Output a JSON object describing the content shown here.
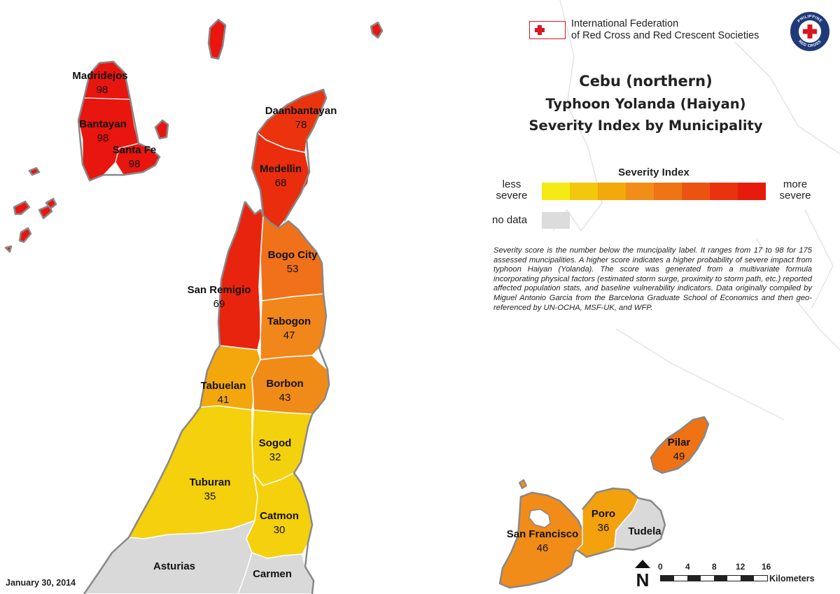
{
  "header": {
    "org_name_line1": "International Federation",
    "org_name_line2": "of Red Cross and Red Crescent Societies",
    "badge_text": "PHILIPPINE RED CROSS"
  },
  "title": {
    "line1": "Cebu (northern)",
    "line2": "Typhoon Yolanda (Haiyan)",
    "line3": "Severity Index by Municipality"
  },
  "legend": {
    "title": "Severity Index",
    "less_label": "less severe",
    "more_label": "more severe",
    "no_data_label": "no data",
    "scale_colors": [
      "#f5ea14",
      "#f3c70b",
      "#f3a90a",
      "#f18e17",
      "#ef7414",
      "#ed5310",
      "#ea330e",
      "#e71b0b"
    ],
    "no_data_color": "#dcdcdc"
  },
  "description": "Severity score is the number below the muncipality label. It ranges from 17 to 98 for 175 assessed muncipalities. A higher score indicates a higher probability of severe impact from typhoon Haiyan (Yolanda). The score was generated from a multivariate formula incorporating physical factors (estimated storm surge, proximity to storm path, etc.) reported affected population stats, and baseline vulnerability indicators. Data originally compiled by Miguel Antonio Garcia from the Barcelona Graduate School of Economics and then geo-referenced by UN-OCHA, MSF-UK, and WFP.",
  "date": "January 30, 2014",
  "scale": {
    "ticks": [
      "0",
      "4",
      "8",
      "12",
      "16"
    ],
    "unit": "Kilometers",
    "north_label": "N"
  },
  "municipalities": [
    {
      "name": "Madridejos",
      "score": "98"
    },
    {
      "name": "Bantayan",
      "score": "98"
    },
    {
      "name": "Santa Fe",
      "score": "98"
    },
    {
      "name": "Daanbantayan",
      "score": "78"
    },
    {
      "name": "Medellin",
      "score": "68"
    },
    {
      "name": "Bogo City",
      "score": "53"
    },
    {
      "name": "San Remigio",
      "score": "69"
    },
    {
      "name": "Tabogon",
      "score": "47"
    },
    {
      "name": "Tabuelan",
      "score": "41"
    },
    {
      "name": "Borbon",
      "score": "43"
    },
    {
      "name": "Sogod",
      "score": "32"
    },
    {
      "name": "Tuburan",
      "score": "35"
    },
    {
      "name": "Catmon",
      "score": "30"
    },
    {
      "name": "Asturias",
      "score": ""
    },
    {
      "name": "Carmen",
      "score": ""
    },
    {
      "name": "Pilar",
      "score": "49"
    },
    {
      "name": "Poro",
      "score": "36"
    },
    {
      "name": "San Francisco",
      "score": "46"
    },
    {
      "name": "Tudela",
      "score": ""
    }
  ]
}
